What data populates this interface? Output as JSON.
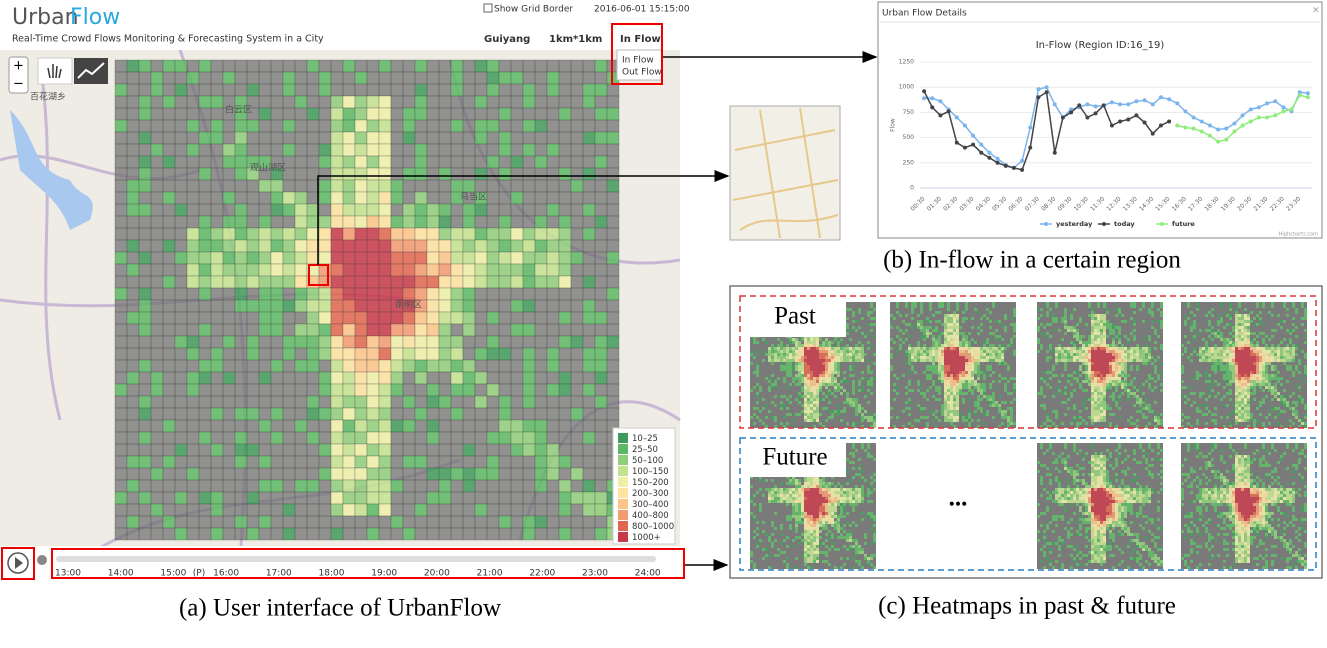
{
  "app": {
    "logo_a": "Urban",
    "logo_b": "Flow",
    "subtitle": "Real-Time Crowd Flows Monitoring & Forecasting System in a City",
    "show_grid": "Show Grid Border",
    "datetime": "2016-06-01 15:15:00",
    "city": "Guiyang",
    "grid_size": "1km*1km",
    "flow_select": "In Flow",
    "flow_options": [
      "In Flow",
      "Out Flow"
    ],
    "zoom_in": "+",
    "zoom_out": "−"
  },
  "map": {
    "labels": [
      "白云区",
      "观山湖区",
      "乌当区",
      "南明区",
      "百花湖乡"
    ]
  },
  "legend": {
    "items": [
      {
        "label": "10–25",
        "color": "#3f9a5a"
      },
      {
        "label": "25–50",
        "color": "#5cb864"
      },
      {
        "label": "50–100",
        "color": "#8fce7a"
      },
      {
        "label": "100–150",
        "color": "#c4e38f"
      },
      {
        "label": "150–200",
        "color": "#eef0a8"
      },
      {
        "label": "200–300",
        "color": "#fde3a0"
      },
      {
        "label": "300–400",
        "color": "#fbc48a"
      },
      {
        "label": "400–800",
        "color": "#f29a70"
      },
      {
        "label": "800–1000",
        "color": "#e0664f"
      },
      {
        "label": "1000+",
        "color": "#c53a4a"
      }
    ]
  },
  "timeline": {
    "labels": [
      "13:00",
      "14:00",
      "15:00",
      "(P)",
      "16:00",
      "17:00",
      "18:00",
      "19:00",
      "20:00",
      "21:00",
      "22:00",
      "23:00",
      "24:00"
    ]
  },
  "details": {
    "window_title": "Urban Flow Details",
    "credit": "Highcharts.com"
  },
  "chart_data": {
    "type": "line",
    "title": "In-Flow (Region ID:16_19)",
    "y_label": "Flow",
    "categories": [
      "00:30",
      null,
      "01:30",
      null,
      "02:30",
      null,
      "03:30",
      null,
      "04:30",
      null,
      "05:30",
      null,
      "06:30",
      null,
      "07:30",
      null,
      "08:30",
      null,
      "09:30",
      null,
      "10:30",
      null,
      "11:30",
      null,
      "12:30",
      null,
      "13:30",
      null,
      "14:30",
      null,
      "15:30",
      null,
      "16:30",
      null,
      "17:30",
      null,
      "18:30",
      null,
      "19:30",
      null,
      "20:30",
      null,
      "21:30",
      null,
      "22:30",
      null,
      "23:30",
      null
    ],
    "series": [
      {
        "name": "yesterday",
        "color": "#7cb5ec",
        "values": [
          890,
          890,
          860,
          780,
          700,
          620,
          520,
          430,
          350,
          290,
          230,
          200,
          270,
          600,
          980,
          1000,
          830,
          700,
          780,
          800,
          830,
          810,
          820,
          850,
          830,
          830,
          860,
          870,
          830,
          900,
          880,
          840,
          760,
          700,
          660,
          620,
          580,
          590,
          640,
          720,
          780,
          800,
          840,
          860,
          800,
          760,
          950,
          940
        ]
      },
      {
        "name": "today",
        "color": "#434348",
        "values": [
          960,
          800,
          720,
          760,
          450,
          400,
          430,
          350,
          300,
          250,
          220,
          200,
          180,
          400,
          900,
          950,
          350,
          700,
          750,
          820,
          700,
          740,
          820,
          620,
          660,
          680,
          720,
          650,
          540,
          620,
          660,
          null,
          null,
          null,
          null,
          null,
          null,
          null,
          null,
          null,
          null,
          null,
          null,
          null,
          null,
          null,
          null,
          null
        ]
      },
      {
        "name": "future",
        "color": "#90ed7d",
        "values": [
          null,
          null,
          null,
          null,
          null,
          null,
          null,
          null,
          null,
          null,
          null,
          null,
          null,
          null,
          null,
          null,
          null,
          null,
          null,
          null,
          null,
          null,
          null,
          null,
          null,
          null,
          null,
          null,
          null,
          null,
          null,
          620,
          600,
          590,
          560,
          520,
          460,
          480,
          560,
          620,
          660,
          700,
          700,
          720,
          760,
          780,
          920,
          900
        ]
      }
    ],
    "ylim": [
      0,
      1250
    ],
    "yticks": [
      0,
      250,
      500,
      750,
      1000,
      1250
    ],
    "grid": true
  },
  "heatmaps": {
    "past": "Past",
    "future": "Future",
    "ellipsis": "..."
  },
  "captions": {
    "a": "(a) User interface of UrbanFlow",
    "b": "(b) In-flow in a certain region",
    "c": "(c) Heatmaps in past & future"
  }
}
